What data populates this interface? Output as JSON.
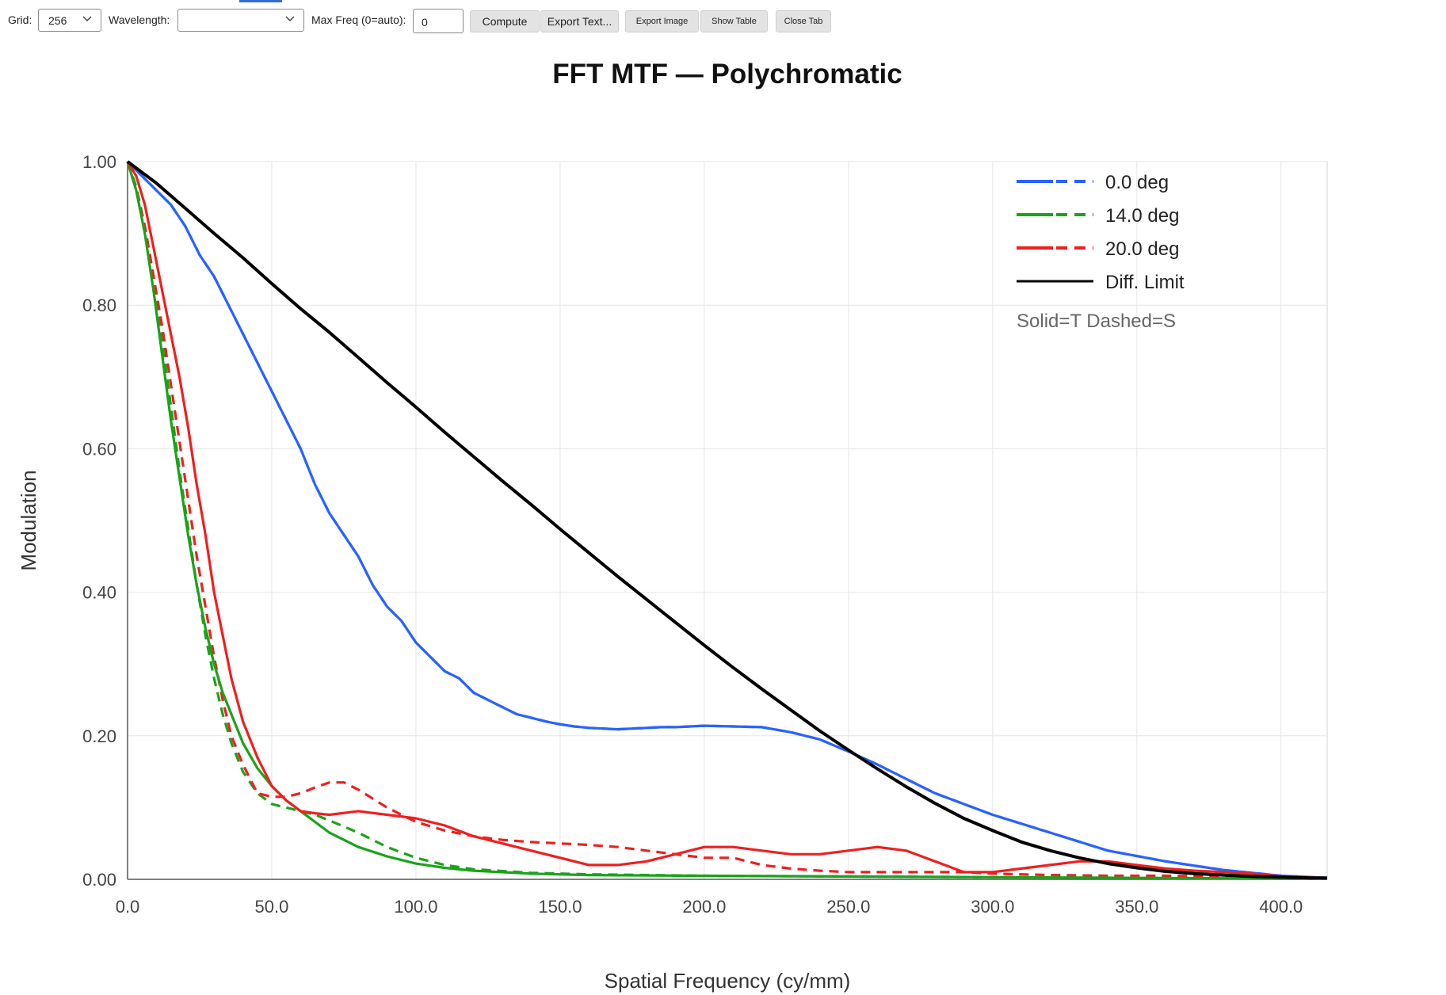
{
  "toolbar": {
    "grid_label": "Grid:",
    "grid_value": "256",
    "wavelength_label": "Wavelength:",
    "wavelength_value": "",
    "maxfreq_label": "Max Freq (0=auto):",
    "maxfreq_value": "0",
    "compute_label": "Compute",
    "export_text_label": "Export Text...",
    "export_image_label": "Export Image",
    "show_table_label": "Show Table",
    "close_tab_label": "Close Tab"
  },
  "icons": {
    "dropdown": "chevron-down-icon"
  },
  "colors": {
    "blue": "#2962ff",
    "green": "#1aa31a",
    "red": "#ef1f1f",
    "black": "#000000",
    "grid": "#e6e6e6",
    "accent": "#2f6fd6"
  },
  "chart_data": {
    "type": "line",
    "title": "FFT MTF — Polychromatic",
    "xlabel": "Spatial Frequency (cy/mm)",
    "ylabel": "Modulation",
    "xlim": [
      0,
      416
    ],
    "ylim": [
      0,
      1.0
    ],
    "xticks": [
      0,
      50,
      100,
      150,
      200,
      250,
      300,
      350,
      400
    ],
    "xtick_labels": [
      "0.0",
      "50.0",
      "100.0",
      "150.0",
      "200.0",
      "250.0",
      "300.0",
      "350.0",
      "400.0"
    ],
    "yticks": [
      0,
      0.2,
      0.4,
      0.6,
      0.8,
      1.0
    ],
    "ytick_labels": [
      "0.00",
      "0.20",
      "0.40",
      "0.60",
      "0.80",
      "1.00"
    ],
    "grid": true,
    "legend_position": "top-right",
    "legend_note": "Solid=T Dashed=S",
    "series": [
      {
        "name": "0.0 deg",
        "style": "solid",
        "color": "#2962ff",
        "x": [
          0,
          5,
          10,
          15,
          20,
          25,
          30,
          35,
          40,
          45,
          50,
          55,
          60,
          65,
          70,
          75,
          80,
          85,
          90,
          95,
          100,
          105,
          110,
          115,
          120,
          125,
          130,
          135,
          140,
          145,
          150,
          155,
          160,
          165,
          170,
          175,
          180,
          185,
          190,
          195,
          200,
          210,
          220,
          230,
          240,
          250,
          260,
          270,
          280,
          290,
          300,
          320,
          340,
          360,
          380,
          400,
          416
        ],
        "y": [
          1.0,
          0.98,
          0.96,
          0.94,
          0.91,
          0.87,
          0.84,
          0.8,
          0.76,
          0.72,
          0.68,
          0.64,
          0.6,
          0.55,
          0.51,
          0.48,
          0.45,
          0.41,
          0.38,
          0.36,
          0.33,
          0.31,
          0.29,
          0.28,
          0.26,
          0.25,
          0.24,
          0.23,
          0.225,
          0.22,
          0.216,
          0.213,
          0.211,
          0.21,
          0.209,
          0.21,
          0.211,
          0.212,
          0.212,
          0.213,
          0.214,
          0.213,
          0.212,
          0.205,
          0.195,
          0.178,
          0.16,
          0.14,
          0.12,
          0.105,
          0.09,
          0.065,
          0.04,
          0.025,
          0.013,
          0.005,
          0.002
        ]
      },
      {
        "name": "0.0 deg",
        "style": "dashed",
        "color": "#2962ff",
        "x": [
          0,
          5,
          10,
          15,
          20,
          25,
          30,
          35,
          40,
          45,
          50,
          55,
          60,
          65,
          70,
          75,
          80,
          85,
          90,
          95,
          100,
          105,
          110,
          115,
          120,
          125,
          130,
          135,
          140,
          145,
          150,
          155,
          160,
          165,
          170,
          175,
          180,
          185,
          190,
          195,
          200,
          210,
          220,
          230,
          240,
          250,
          260,
          270,
          280,
          290,
          300,
          320,
          340,
          360,
          380,
          400,
          416
        ],
        "y": [
          1.0,
          0.98,
          0.96,
          0.94,
          0.91,
          0.87,
          0.84,
          0.8,
          0.76,
          0.72,
          0.68,
          0.64,
          0.6,
          0.55,
          0.51,
          0.48,
          0.45,
          0.41,
          0.38,
          0.36,
          0.33,
          0.31,
          0.29,
          0.28,
          0.26,
          0.25,
          0.24,
          0.23,
          0.225,
          0.22,
          0.216,
          0.213,
          0.211,
          0.21,
          0.209,
          0.21,
          0.211,
          0.212,
          0.212,
          0.213,
          0.214,
          0.213,
          0.212,
          0.205,
          0.195,
          0.178,
          0.16,
          0.14,
          0.12,
          0.105,
          0.09,
          0.065,
          0.04,
          0.025,
          0.013,
          0.005,
          0.002
        ]
      },
      {
        "name": "14.0 deg",
        "style": "solid",
        "color": "#1aa31a",
        "x": [
          0,
          3,
          6,
          9,
          12,
          15,
          18,
          21,
          24,
          27,
          30,
          33,
          36,
          40,
          45,
          50,
          55,
          60,
          65,
          70,
          80,
          90,
          100,
          110,
          120,
          140,
          160,
          200,
          250,
          300,
          350,
          400,
          416
        ],
        "y": [
          1.0,
          0.96,
          0.9,
          0.82,
          0.73,
          0.64,
          0.56,
          0.48,
          0.41,
          0.35,
          0.3,
          0.26,
          0.23,
          0.19,
          0.155,
          0.13,
          0.11,
          0.095,
          0.08,
          0.065,
          0.045,
          0.032,
          0.022,
          0.016,
          0.012,
          0.008,
          0.006,
          0.005,
          0.004,
          0.003,
          0.002,
          0.001,
          0.001
        ]
      },
      {
        "name": "14.0 deg",
        "style": "dashed",
        "color": "#1aa31a",
        "x": [
          0,
          3,
          6,
          9,
          12,
          15,
          18,
          21,
          24,
          27,
          30,
          33,
          36,
          40,
          45,
          50,
          55,
          60,
          65,
          70,
          80,
          90,
          100,
          110,
          120,
          140,
          160,
          200,
          250,
          300,
          350,
          400,
          416
        ],
        "y": [
          1.0,
          0.965,
          0.91,
          0.84,
          0.75,
          0.66,
          0.57,
          0.49,
          0.41,
          0.34,
          0.28,
          0.23,
          0.19,
          0.15,
          0.12,
          0.105,
          0.1,
          0.095,
          0.09,
          0.082,
          0.065,
          0.045,
          0.03,
          0.02,
          0.014,
          0.009,
          0.007,
          0.005,
          0.004,
          0.003,
          0.002,
          0.001,
          0.001
        ]
      },
      {
        "name": "20.0 deg",
        "style": "solid",
        "color": "#ef1f1f",
        "x": [
          0,
          3,
          6,
          9,
          12,
          15,
          18,
          21,
          24,
          27,
          30,
          33,
          36,
          40,
          45,
          50,
          55,
          60,
          65,
          70,
          80,
          90,
          100,
          110,
          120,
          130,
          140,
          150,
          160,
          170,
          180,
          190,
          200,
          210,
          220,
          230,
          240,
          250,
          260,
          270,
          280,
          290,
          300,
          310,
          320,
          330,
          340,
          350,
          360,
          370,
          380,
          390,
          400,
          416
        ],
        "y": [
          1.0,
          0.98,
          0.94,
          0.88,
          0.82,
          0.76,
          0.7,
          0.63,
          0.55,
          0.48,
          0.4,
          0.34,
          0.28,
          0.22,
          0.17,
          0.13,
          0.11,
          0.095,
          0.092,
          0.09,
          0.095,
          0.09,
          0.085,
          0.075,
          0.06,
          0.05,
          0.04,
          0.03,
          0.02,
          0.02,
          0.025,
          0.035,
          0.045,
          0.045,
          0.04,
          0.035,
          0.035,
          0.04,
          0.045,
          0.04,
          0.025,
          0.01,
          0.01,
          0.015,
          0.02,
          0.025,
          0.025,
          0.02,
          0.015,
          0.012,
          0.01,
          0.008,
          0.004,
          0.002
        ]
      },
      {
        "name": "20.0 deg",
        "style": "dashed",
        "color": "#ef1f1f",
        "x": [
          0,
          3,
          6,
          9,
          12,
          15,
          18,
          21,
          24,
          27,
          30,
          33,
          36,
          40,
          45,
          50,
          55,
          60,
          65,
          70,
          75,
          80,
          90,
          100,
          110,
          120,
          130,
          140,
          150,
          160,
          170,
          180,
          190,
          200,
          210,
          220,
          230,
          240,
          250,
          260,
          270,
          280,
          290,
          300,
          320,
          340,
          360,
          380,
          400,
          416
        ],
        "y": [
          1.0,
          0.96,
          0.91,
          0.84,
          0.77,
          0.69,
          0.61,
          0.53,
          0.45,
          0.38,
          0.31,
          0.25,
          0.2,
          0.16,
          0.12,
          0.115,
          0.115,
          0.12,
          0.128,
          0.135,
          0.135,
          0.125,
          0.1,
          0.08,
          0.068,
          0.06,
          0.055,
          0.052,
          0.05,
          0.048,
          0.045,
          0.04,
          0.035,
          0.03,
          0.03,
          0.02,
          0.015,
          0.012,
          0.01,
          0.01,
          0.01,
          0.01,
          0.01,
          0.008,
          0.006,
          0.005,
          0.005,
          0.004,
          0.003,
          0.002
        ]
      },
      {
        "name": "Diff. Limit",
        "style": "solid",
        "color": "#000000",
        "x": [
          0,
          10,
          20,
          30,
          40,
          50,
          60,
          70,
          80,
          90,
          100,
          110,
          120,
          130,
          140,
          150,
          160,
          170,
          180,
          190,
          200,
          210,
          220,
          230,
          240,
          250,
          260,
          270,
          280,
          290,
          300,
          310,
          320,
          330,
          340,
          350,
          360,
          370,
          380,
          390,
          400,
          410,
          416
        ],
        "y": [
          1.0,
          0.97,
          0.935,
          0.9,
          0.866,
          0.83,
          0.795,
          0.762,
          0.727,
          0.692,
          0.658,
          0.623,
          0.589,
          0.555,
          0.522,
          0.488,
          0.455,
          0.422,
          0.39,
          0.358,
          0.326,
          0.295,
          0.265,
          0.236,
          0.207,
          0.18,
          0.154,
          0.129,
          0.106,
          0.085,
          0.068,
          0.052,
          0.04,
          0.03,
          0.022,
          0.016,
          0.011,
          0.008,
          0.006,
          0.004,
          0.003,
          0.002,
          0.002
        ]
      }
    ],
    "legend": [
      {
        "label": "0.0 deg",
        "color": "#2962ff",
        "mark": "solid+dashed"
      },
      {
        "label": "14.0 deg",
        "color": "#1aa31a",
        "mark": "solid+dashed"
      },
      {
        "label": "20.0 deg",
        "color": "#ef1f1f",
        "mark": "solid+dashed"
      },
      {
        "label": "Diff. Limit",
        "color": "#000000",
        "mark": "solid"
      }
    ]
  }
}
